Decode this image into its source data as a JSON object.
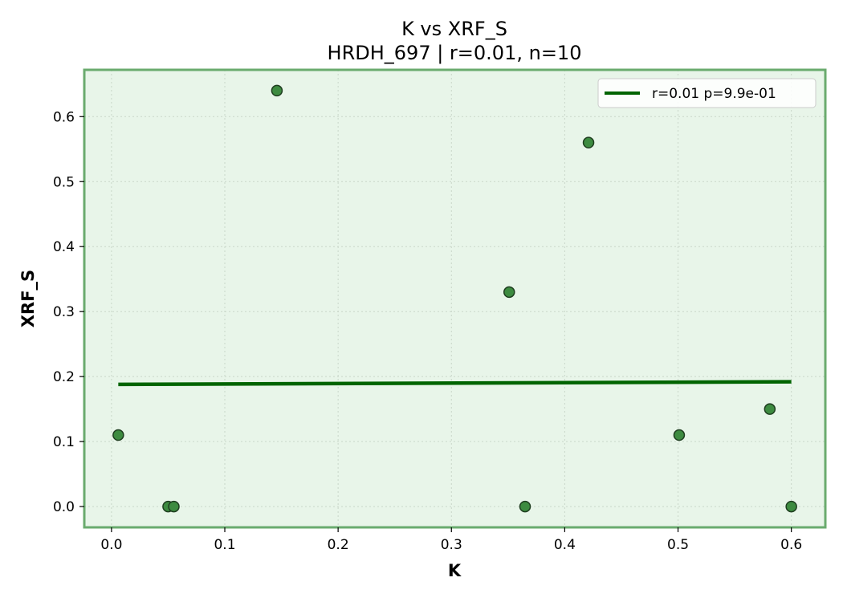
{
  "chart_data": {
    "type": "scatter",
    "title": "K vs XRF_S",
    "subtitle": "HRDH_697 | r=0.01, n=10",
    "xlabel": "K",
    "ylabel": "XRF_S",
    "xlim": [
      -0.024,
      0.63
    ],
    "ylim": [
      -0.032,
      0.672
    ],
    "xticks": [
      0.0,
      0.1,
      0.2,
      0.3,
      0.4,
      0.5,
      0.6
    ],
    "xtick_labels": [
      "0.0",
      "0.1",
      "0.2",
      "0.3",
      "0.4",
      "0.5",
      "0.6"
    ],
    "yticks": [
      0.0,
      0.1,
      0.2,
      0.3,
      0.4,
      0.5,
      0.6
    ],
    "ytick_labels": [
      "0.0",
      "0.1",
      "0.2",
      "0.3",
      "0.4",
      "0.5",
      "0.6"
    ],
    "grid": true,
    "legend_position": "top-right",
    "points": [
      {
        "x": 0.006,
        "y": 0.11
      },
      {
        "x": 0.05,
        "y": 0.0
      },
      {
        "x": 0.055,
        "y": 0.0
      },
      {
        "x": 0.146,
        "y": 0.64
      },
      {
        "x": 0.351,
        "y": 0.33
      },
      {
        "x": 0.365,
        "y": 0.0
      },
      {
        "x": 0.421,
        "y": 0.56
      },
      {
        "x": 0.501,
        "y": 0.11
      },
      {
        "x": 0.581,
        "y": 0.15
      },
      {
        "x": 0.6,
        "y": 0.0
      }
    ],
    "fit_line": {
      "label": "r=0.01  p=9.9e-01",
      "x": [
        0.006,
        0.6
      ],
      "y": [
        0.188,
        0.192
      ]
    },
    "colors": {
      "plot_background": "#e8f5e9",
      "frame": "#6aab6e",
      "grid": "#c9d6c9",
      "point_fill": "#3d8b40",
      "point_edge": "#1e3d1f",
      "fit_line": "#006400"
    }
  }
}
